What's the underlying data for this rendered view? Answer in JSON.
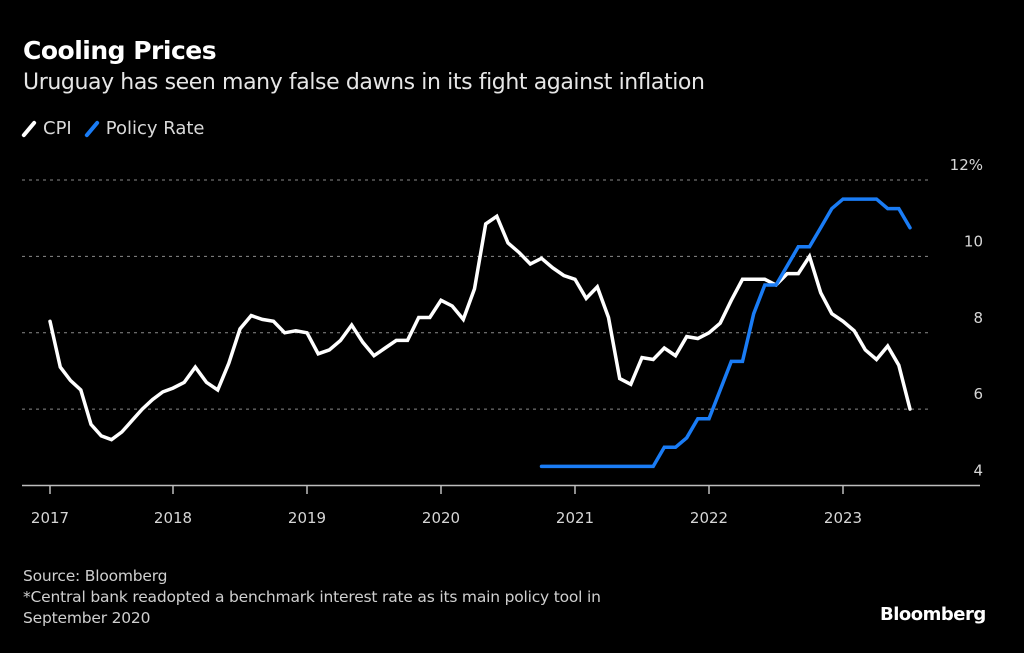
{
  "chart_data": {
    "type": "line",
    "title": "Cooling Prices",
    "subtitle": "Uruguay has seen many false dawns in its fight against inflation",
    "xlabel": "",
    "ylabel": "",
    "ylim": [
      4,
      12
    ],
    "yticks": [
      4,
      6,
      8,
      10,
      12
    ],
    "ytick_labels": [
      "4",
      "6",
      "8",
      "10",
      "12%"
    ],
    "xticks": [
      "2017",
      "2018",
      "2019",
      "2020",
      "2021",
      "2022",
      "2023"
    ],
    "grid": true,
    "legend_position": "top-left",
    "series": [
      {
        "name": "CPI",
        "color": "#ffffff",
        "start": "2017-01",
        "values": [
          8.3,
          7.1,
          6.75,
          6.5,
          5.6,
          5.3,
          5.2,
          5.4,
          5.7,
          6.0,
          6.25,
          6.45,
          6.55,
          6.7,
          7.1,
          6.7,
          6.5,
          7.2,
          8.1,
          8.45,
          8.35,
          8.3,
          8.0,
          8.05,
          8.0,
          7.45,
          7.55,
          7.8,
          8.2,
          7.75,
          7.4,
          7.6,
          7.8,
          7.8,
          8.4,
          8.4,
          8.85,
          8.7,
          8.35,
          9.15,
          10.85,
          11.05,
          10.35,
          10.1,
          9.8,
          9.95,
          9.7,
          9.5,
          9.4,
          8.9,
          9.2,
          8.4,
          6.8,
          6.65,
          7.35,
          7.3,
          7.6,
          7.4,
          7.9,
          7.85,
          8.0,
          8.25,
          8.85,
          9.4,
          9.4,
          9.4,
          9.25,
          9.55,
          9.55,
          10.0,
          9.05,
          8.5,
          8.3,
          8.05,
          7.55,
          7.3,
          7.65,
          7.15,
          6.0
        ]
      },
      {
        "name": "Policy Rate",
        "color": "#1a7cf5",
        "start": "2020-10",
        "values": [
          4.5,
          4.5,
          4.5,
          4.5,
          4.5,
          4.5,
          4.5,
          4.5,
          4.5,
          4.5,
          4.5,
          5.0,
          5.0,
          5.25,
          5.75,
          5.75,
          6.5,
          7.25,
          7.25,
          8.5,
          9.25,
          9.25,
          9.75,
          10.25,
          10.25,
          10.75,
          11.25,
          11.5,
          11.5,
          11.5,
          11.5,
          11.25,
          11.25,
          10.75
        ]
      }
    ]
  },
  "header": {
    "title": "Cooling Prices",
    "subtitle": "Uruguay has seen many false dawns in its fight against inflation"
  },
  "legend": [
    {
      "label": "CPI",
      "color": "#ffffff"
    },
    {
      "label": "Policy Rate",
      "color": "#1a7cf5"
    }
  ],
  "footer": {
    "source": "Source: Bloomberg",
    "note_line1": "*Central bank readopted a benchmark interest rate as its main policy tool in",
    "note_line2": "September 2020"
  },
  "logo": "Bloomberg"
}
